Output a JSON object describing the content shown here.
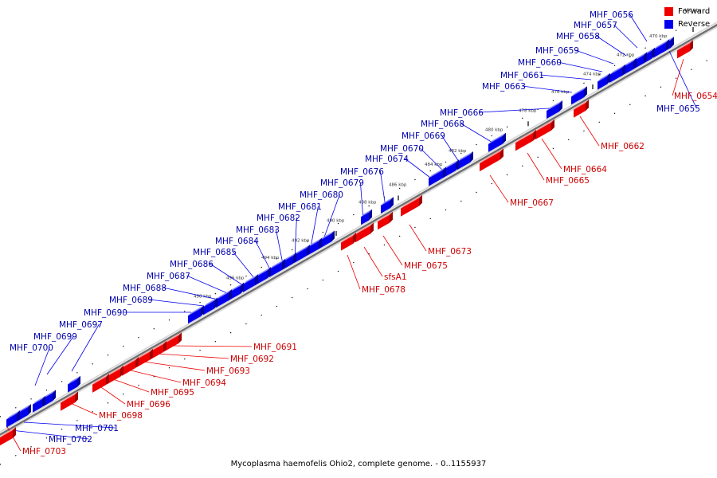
{
  "title": "Mycoplasma haemofelis Ohio2, complete genome. - 0..1155937",
  "colors": {
    "forward": "#ee0000",
    "reverse": "#0000ee"
  },
  "legend": [
    {
      "label": "Forward",
      "color": "#ee0000"
    },
    {
      "label": "Reverse",
      "color": "#0000ee"
    }
  ],
  "scale": {
    "ticks": [
      "468 kbp",
      "470 kbp",
      "472 kbp",
      "474 kbp",
      "476 kbp",
      "478 kbp",
      "480 kbp",
      "482 kbp",
      "484 kbp",
      "486 kbp",
      "488 kbp",
      "490 kbp",
      "492 kbp",
      "494 kbp",
      "496 kbp",
      "498 kbp"
    ]
  },
  "genes": [
    {
      "name": "MHF_0654",
      "strand": "forward"
    },
    {
      "name": "MHF_0655",
      "strand": "reverse"
    },
    {
      "name": "MHF_0656",
      "strand": "reverse"
    },
    {
      "name": "MHF_0657",
      "strand": "reverse"
    },
    {
      "name": "MHF_0658",
      "strand": "reverse"
    },
    {
      "name": "MHF_0659",
      "strand": "reverse"
    },
    {
      "name": "MHF_0660",
      "strand": "reverse"
    },
    {
      "name": "MHF_0661",
      "strand": "reverse"
    },
    {
      "name": "MHF_0662",
      "strand": "forward"
    },
    {
      "name": "MHF_0663",
      "strand": "reverse"
    },
    {
      "name": "MHF_0664",
      "strand": "forward"
    },
    {
      "name": "MHF_0665",
      "strand": "forward"
    },
    {
      "name": "MHF_0666",
      "strand": "reverse"
    },
    {
      "name": "MHF_0667",
      "strand": "forward"
    },
    {
      "name": "MHF_0668",
      "strand": "reverse"
    },
    {
      "name": "MHF_0669",
      "strand": "reverse"
    },
    {
      "name": "MHF_0670",
      "strand": "reverse"
    },
    {
      "name": "MHF_0673",
      "strand": "forward"
    },
    {
      "name": "MHF_0674",
      "strand": "reverse"
    },
    {
      "name": "MHF_0675",
      "strand": "forward"
    },
    {
      "name": "sfsA1",
      "strand": "forward"
    },
    {
      "name": "MHF_0676",
      "strand": "reverse"
    },
    {
      "name": "MHF_0678",
      "strand": "forward"
    },
    {
      "name": "MHF_0679",
      "strand": "reverse"
    },
    {
      "name": "MHF_0680",
      "strand": "reverse"
    },
    {
      "name": "MHF_0681",
      "strand": "reverse"
    },
    {
      "name": "MHF_0682",
      "strand": "reverse"
    },
    {
      "name": "MHF_0683",
      "strand": "reverse"
    },
    {
      "name": "MHF_0684",
      "strand": "reverse"
    },
    {
      "name": "MHF_0685",
      "strand": "reverse"
    },
    {
      "name": "MHF_0686",
      "strand": "reverse"
    },
    {
      "name": "MHF_0687",
      "strand": "reverse"
    },
    {
      "name": "MHF_0688",
      "strand": "reverse"
    },
    {
      "name": "MHF_0689",
      "strand": "reverse"
    },
    {
      "name": "MHF_0690",
      "strand": "reverse"
    },
    {
      "name": "MHF_0691",
      "strand": "forward"
    },
    {
      "name": "MHF_0692",
      "strand": "forward"
    },
    {
      "name": "MHF_0693",
      "strand": "forward"
    },
    {
      "name": "MHF_0694",
      "strand": "forward"
    },
    {
      "name": "MHF_0695",
      "strand": "forward"
    },
    {
      "name": "MHF_0696",
      "strand": "forward"
    },
    {
      "name": "MHF_0697",
      "strand": "reverse"
    },
    {
      "name": "MHF_0698",
      "strand": "forward"
    },
    {
      "name": "MHF_0699",
      "strand": "reverse"
    },
    {
      "name": "MHF_0700",
      "strand": "reverse"
    },
    {
      "name": "MHF_0701",
      "strand": "reverse"
    },
    {
      "name": "MHF_0702",
      "strand": "reverse"
    },
    {
      "name": "MHF_0703",
      "strand": "forward"
    }
  ]
}
